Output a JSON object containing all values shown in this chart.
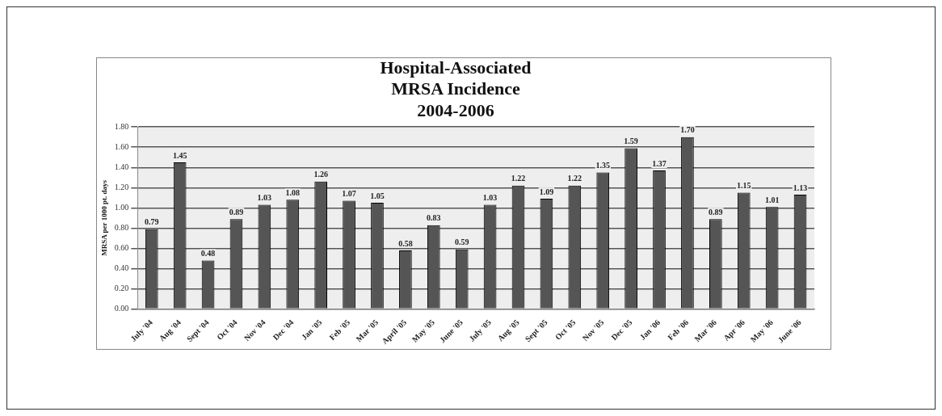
{
  "chart_data": {
    "type": "bar",
    "title": [
      "Hospital-Associated",
      "MRSA Incidence",
      "2004-2006"
    ],
    "ylabel": "MRSA per 1000 pt. days",
    "categories": [
      "July '04",
      "Aug '04",
      "Sept '04",
      "Oct '04",
      "Nov '04",
      "Dec '04",
      "Jan '05",
      "Feb '05",
      "Mar '05",
      "April '05",
      "May '05",
      "June '05",
      "July '05",
      "Aug '05",
      "Sept '05",
      "Oct '05",
      "Nov '05",
      "Dec '05",
      "Jan '06",
      "Feb '06",
      "Mar '06",
      "Apr '06",
      "May '06",
      "June '06"
    ],
    "values": [
      0.79,
      1.45,
      0.48,
      0.89,
      1.03,
      1.08,
      1.26,
      1.07,
      1.05,
      0.58,
      0.83,
      0.59,
      1.03,
      1.22,
      1.09,
      1.22,
      1.35,
      1.59,
      1.37,
      1.7,
      0.89,
      1.15,
      1.01,
      1.13
    ],
    "value_labels": [
      "0.79",
      "1.45",
      "0.48",
      "0.89",
      "1.03",
      "1.08",
      "1.26",
      "1.07",
      "1.05",
      "0.58",
      "0.83",
      "0.59",
      "1.03",
      "1.22",
      "1.09",
      "1.22",
      "1.35",
      "1.59",
      "1.37",
      "1.70",
      "0.89",
      "1.15",
      "1.01",
      "1.13"
    ],
    "color": "#555555",
    "ylim": [
      0,
      1.8
    ],
    "yticks": [
      {
        "value": 0,
        "label": "0.00"
      },
      {
        "value": 0.2,
        "label": "0.20"
      },
      {
        "value": 0.4,
        "label": "0.40"
      },
      {
        "value": 0.6,
        "label": "0.60"
      },
      {
        "value": 0.8,
        "label": "0.80"
      },
      {
        "value": 1,
        "label": "1.00"
      },
      {
        "value": 1.2,
        "label": "1.20"
      },
      {
        "value": 1.4,
        "label": "1.40"
      },
      {
        "value": 1.6,
        "label": "1.60"
      },
      {
        "value": 1.8,
        "label": "1.80"
      }
    ],
    "grid": "y",
    "legend": false
  }
}
